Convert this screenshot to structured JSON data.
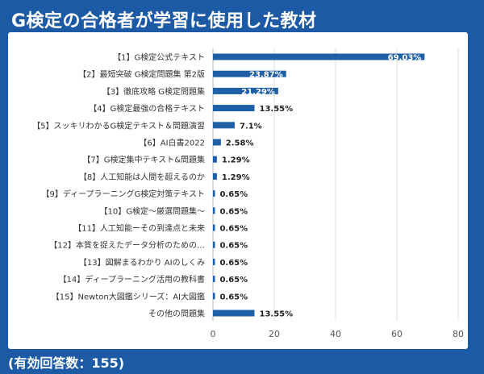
{
  "title": "G検定の合格者が学習に使用した教材",
  "footnote": "(有効回答数：155)",
  "colors": {
    "background": "#1c5aa5",
    "bar": "#1f5fa8",
    "gridline": "#dcdcdc",
    "axis": "#b0b0b0"
  },
  "chart_data": {
    "type": "bar",
    "orientation": "horizontal",
    "title": "",
    "xlabel": "",
    "ylabel": "",
    "categories": [
      "【1】G検定公式テキスト",
      "【2】最短突破 G検定問題集 第2版",
      "【3】徹底攻略 G検定問題集",
      "【4】G検定最強の合格テキスト",
      "【5】スッキリわかるG検定テキスト＆問題演習",
      "【6】AI白書2022",
      "【7】G検定集中テキスト&問題集",
      "【8】人工知能は人間を超えるのか",
      "【9】ディープラーニングG検定対策テキスト",
      "【10】G検定〜厳選問題集〜",
      "【11】人工知能ーその到達点と未来",
      "【12】本質を捉えたデータ分析のための…",
      "【13】図解まるわかり AIのしくみ",
      "【14】ディープラーニング活用の教科書",
      "【15】Newton大図鑑シリーズ：AI大図鑑",
      "その他の問題集"
    ],
    "values": [
      69.03,
      23.87,
      21.29,
      13.55,
      7.1,
      2.58,
      1.29,
      1.29,
      0.65,
      0.65,
      0.65,
      0.65,
      0.65,
      0.65,
      0.65,
      13.55
    ],
    "data_labels": [
      "69.03%",
      "23.87%",
      "21.29%",
      "13.55%",
      "7.1%",
      "2.58%",
      "1.29%",
      "1.29%",
      "0.65%",
      "0.65%",
      "0.65%",
      "0.65%",
      "0.65%",
      "0.65%",
      "0.65%",
      "13.55%"
    ],
    "xlim": [
      0,
      80
    ],
    "xticks": [
      0,
      20,
      40,
      60,
      80
    ],
    "grid": true,
    "legend": "none"
  }
}
